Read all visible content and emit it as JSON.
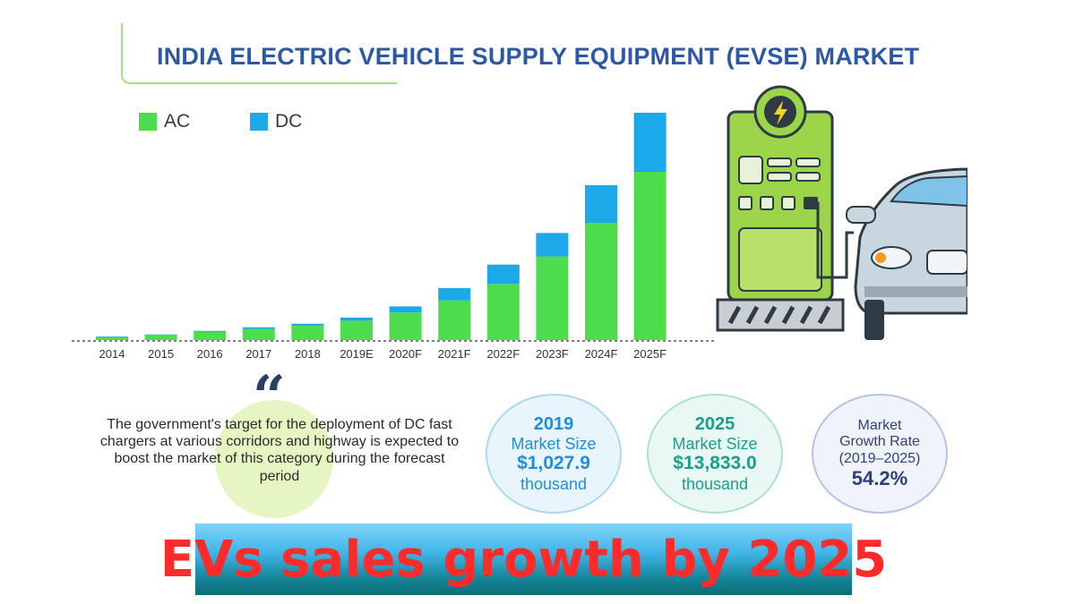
{
  "header": {
    "title": "INDIA ELECTRIC VEHICLE SUPPLY EQUIPMENT (EVSE) MARKET"
  },
  "legend": [
    {
      "name": "AC",
      "color": "#4cdc4c"
    },
    {
      "name": "DC",
      "color": "#1ba9ea"
    }
  ],
  "chart_data": {
    "type": "bar",
    "stacked": true,
    "title": "INDIA ELECTRIC VEHICLE SUPPLY EQUIPMENT (EVSE) MARKET",
    "categories": [
      "2014",
      "2015",
      "2016",
      "2017",
      "2018",
      "2019E",
      "2020F",
      "2021F",
      "2022F",
      "2023F",
      "2024F",
      "2025F"
    ],
    "series": [
      {
        "name": "AC",
        "color": "#4cdc4c",
        "values": [
          3,
          5,
          8,
          11,
          14,
          19,
          27,
          39,
          55,
          82,
          115,
          165
        ]
      },
      {
        "name": "DC",
        "color": "#1ba9ea",
        "values": [
          0.5,
          0.5,
          1,
          1.5,
          2,
          3,
          6,
          12,
          19,
          23,
          37,
          58
        ]
      }
    ],
    "xlabel": "",
    "ylabel": "",
    "ylim": [
      0,
      230
    ],
    "grid": false,
    "legend_position": "top-left"
  },
  "quote": {
    "text": "The government's target for the deployment of DC fast chargers at various corridors and highway is expected to boost the market of this category during the forecast period"
  },
  "stats": {
    "s2019": {
      "year": "2019",
      "label": "Market Size",
      "value": "$1,027.9",
      "unit": "thousand"
    },
    "s2025": {
      "year": "2025",
      "label": "Market Size",
      "value": "$13,833.0",
      "unit": "thousand"
    },
    "growth": {
      "line1": "Market",
      "line2": "Growth Rate",
      "line3": "(2019–2025)",
      "value": "54.2%"
    }
  },
  "banner": {
    "text": "EVs sales growth by 2025"
  },
  "colors": {
    "title": "#2c58a6",
    "ac": "#4cdc4c",
    "dc": "#1ba9ea",
    "banner_text": "#ff2a2a"
  }
}
